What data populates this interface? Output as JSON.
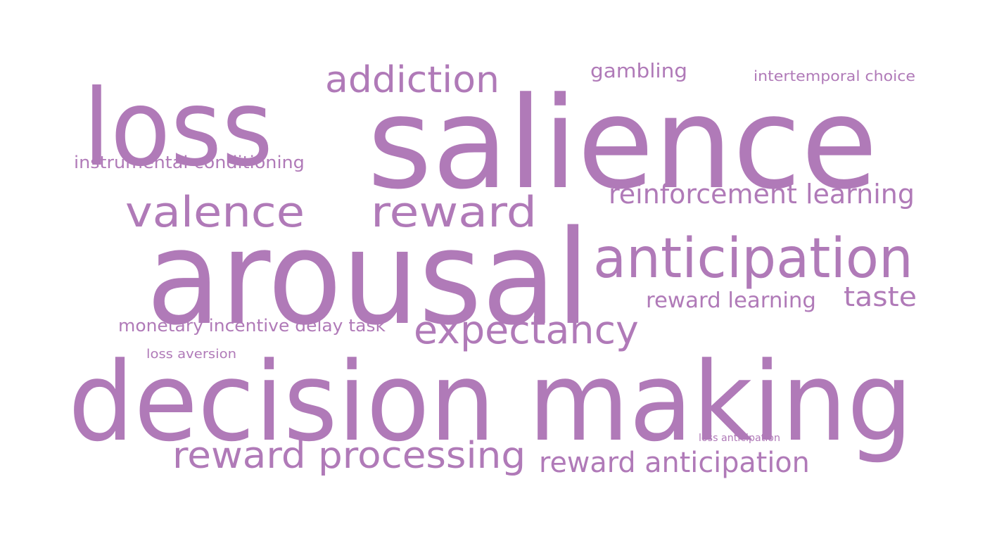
{
  "color": "#b07ab8",
  "words": [
    {
      "id": "salience",
      "text": "salience"
    },
    {
      "id": "arousal",
      "text": "arousal"
    },
    {
      "id": "decision-making",
      "text": "decision making"
    },
    {
      "id": "loss",
      "text": "loss"
    },
    {
      "id": "anticipation",
      "text": "anticipation"
    },
    {
      "id": "reward",
      "text": "reward"
    },
    {
      "id": "valence",
      "text": "valence"
    },
    {
      "id": "addiction",
      "text": "addiction"
    },
    {
      "id": "expectancy",
      "text": "expectancy"
    },
    {
      "id": "reward-processing",
      "text": "reward processing"
    },
    {
      "id": "reinforcement-learning",
      "text": "reinforcement learning"
    },
    {
      "id": "reward-anticipation",
      "text": "reward anticipation"
    },
    {
      "id": "taste",
      "text": "taste"
    },
    {
      "id": "reward-learning",
      "text": "reward learning"
    },
    {
      "id": "gambling",
      "text": "gambling"
    },
    {
      "id": "instrumental-conditioning",
      "text": "instrumental conditioning"
    },
    {
      "id": "monetary-incentive-delay-task",
      "text": "monetary incentive delay task"
    },
    {
      "id": "intertemporal-choice",
      "text": "intertemporal choice"
    },
    {
      "id": "loss-aversion",
      "text": "loss aversion"
    },
    {
      "id": "loss-anticipation",
      "text": "loss anticipation"
    }
  ]
}
